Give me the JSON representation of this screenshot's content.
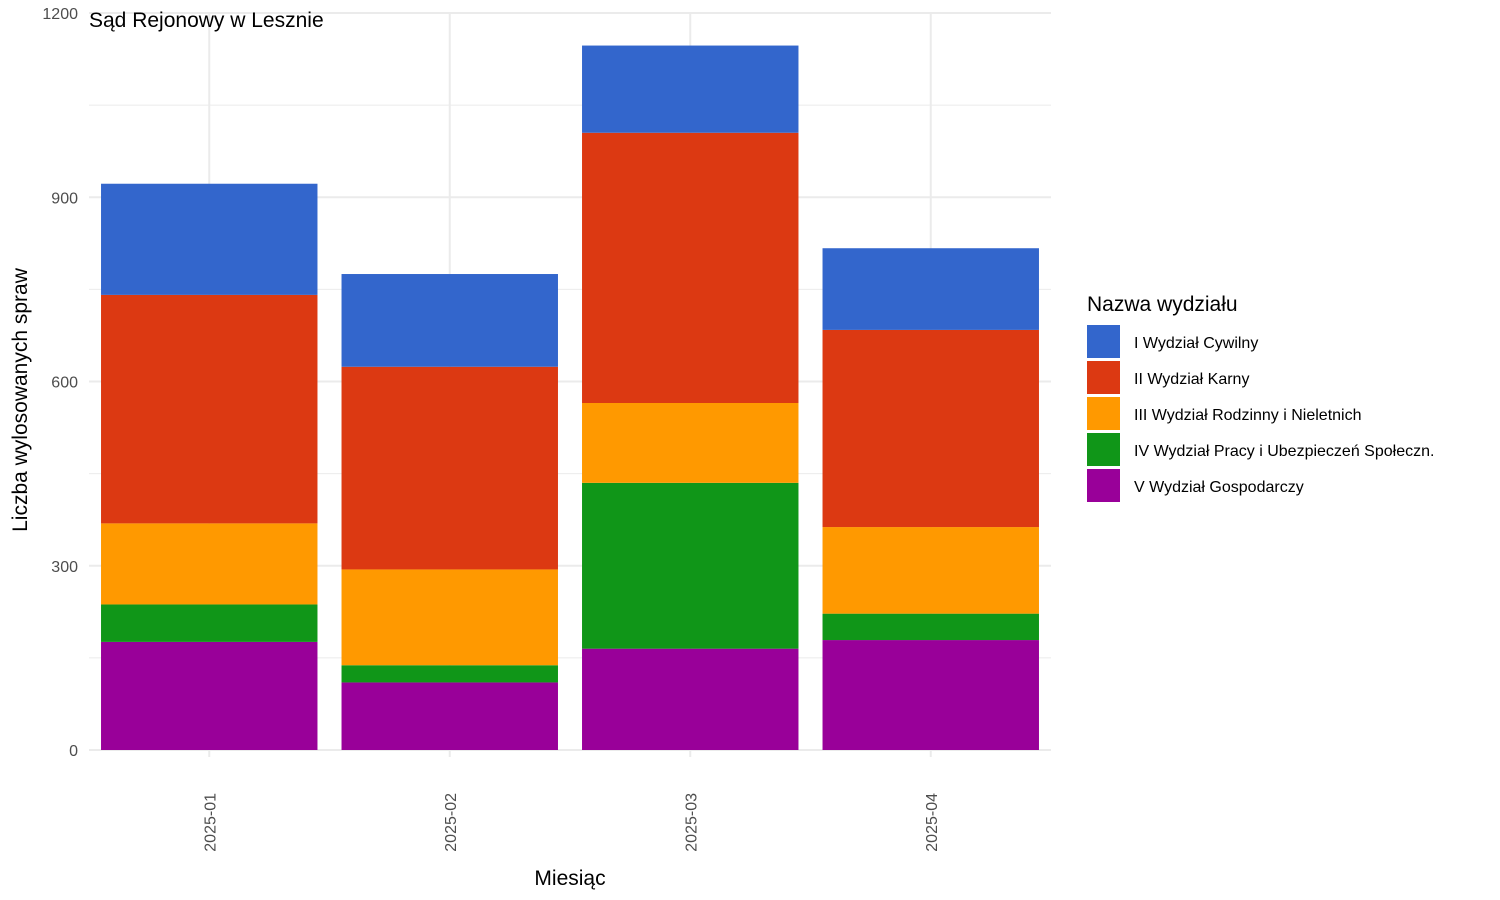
{
  "chart_data": {
    "type": "bar",
    "stacked": true,
    "title": "Sąd Rejonowy w Lesznie",
    "xlabel": "Miesiąc",
    "ylabel": "Liczba wylosowanych spraw",
    "categories": [
      "2025-01",
      "2025-02",
      "2025-03",
      "2025-04"
    ],
    "ylim": [
      0,
      1200
    ],
    "yticks": [
      0,
      300,
      600,
      900,
      1200
    ],
    "grid": true,
    "legend": {
      "title": "Nazwa wydziału",
      "position": "right"
    },
    "series": [
      {
        "name": "V Wydział Gospodarczy",
        "color": "#990099",
        "values": [
          176,
          110,
          165,
          179
        ]
      },
      {
        "name": "IV Wydział Pracy i Ubezpieczeń Społeczn.",
        "color": "#109618",
        "values": [
          61,
          28,
          270,
          43
        ]
      },
      {
        "name": "III Wydział Rodzinny i Nieletnich",
        "color": "#FF9900",
        "values": [
          132,
          156,
          130,
          141
        ]
      },
      {
        "name": "II Wydział Karny",
        "color": "#DC3912",
        "values": [
          372,
          330,
          440,
          321
        ]
      },
      {
        "name": "I Wydział Cywilny",
        "color": "#3366CC",
        "values": [
          181,
          151,
          142,
          133
        ]
      }
    ],
    "legend_order": [
      "I Wydział Cywilny",
      "II Wydział Karny",
      "III Wydział Rodzinny i Nieletnich",
      "IV Wydział Pracy i Ubezpieczeń Społeczn.",
      "V Wydział Gospodarczy"
    ]
  }
}
